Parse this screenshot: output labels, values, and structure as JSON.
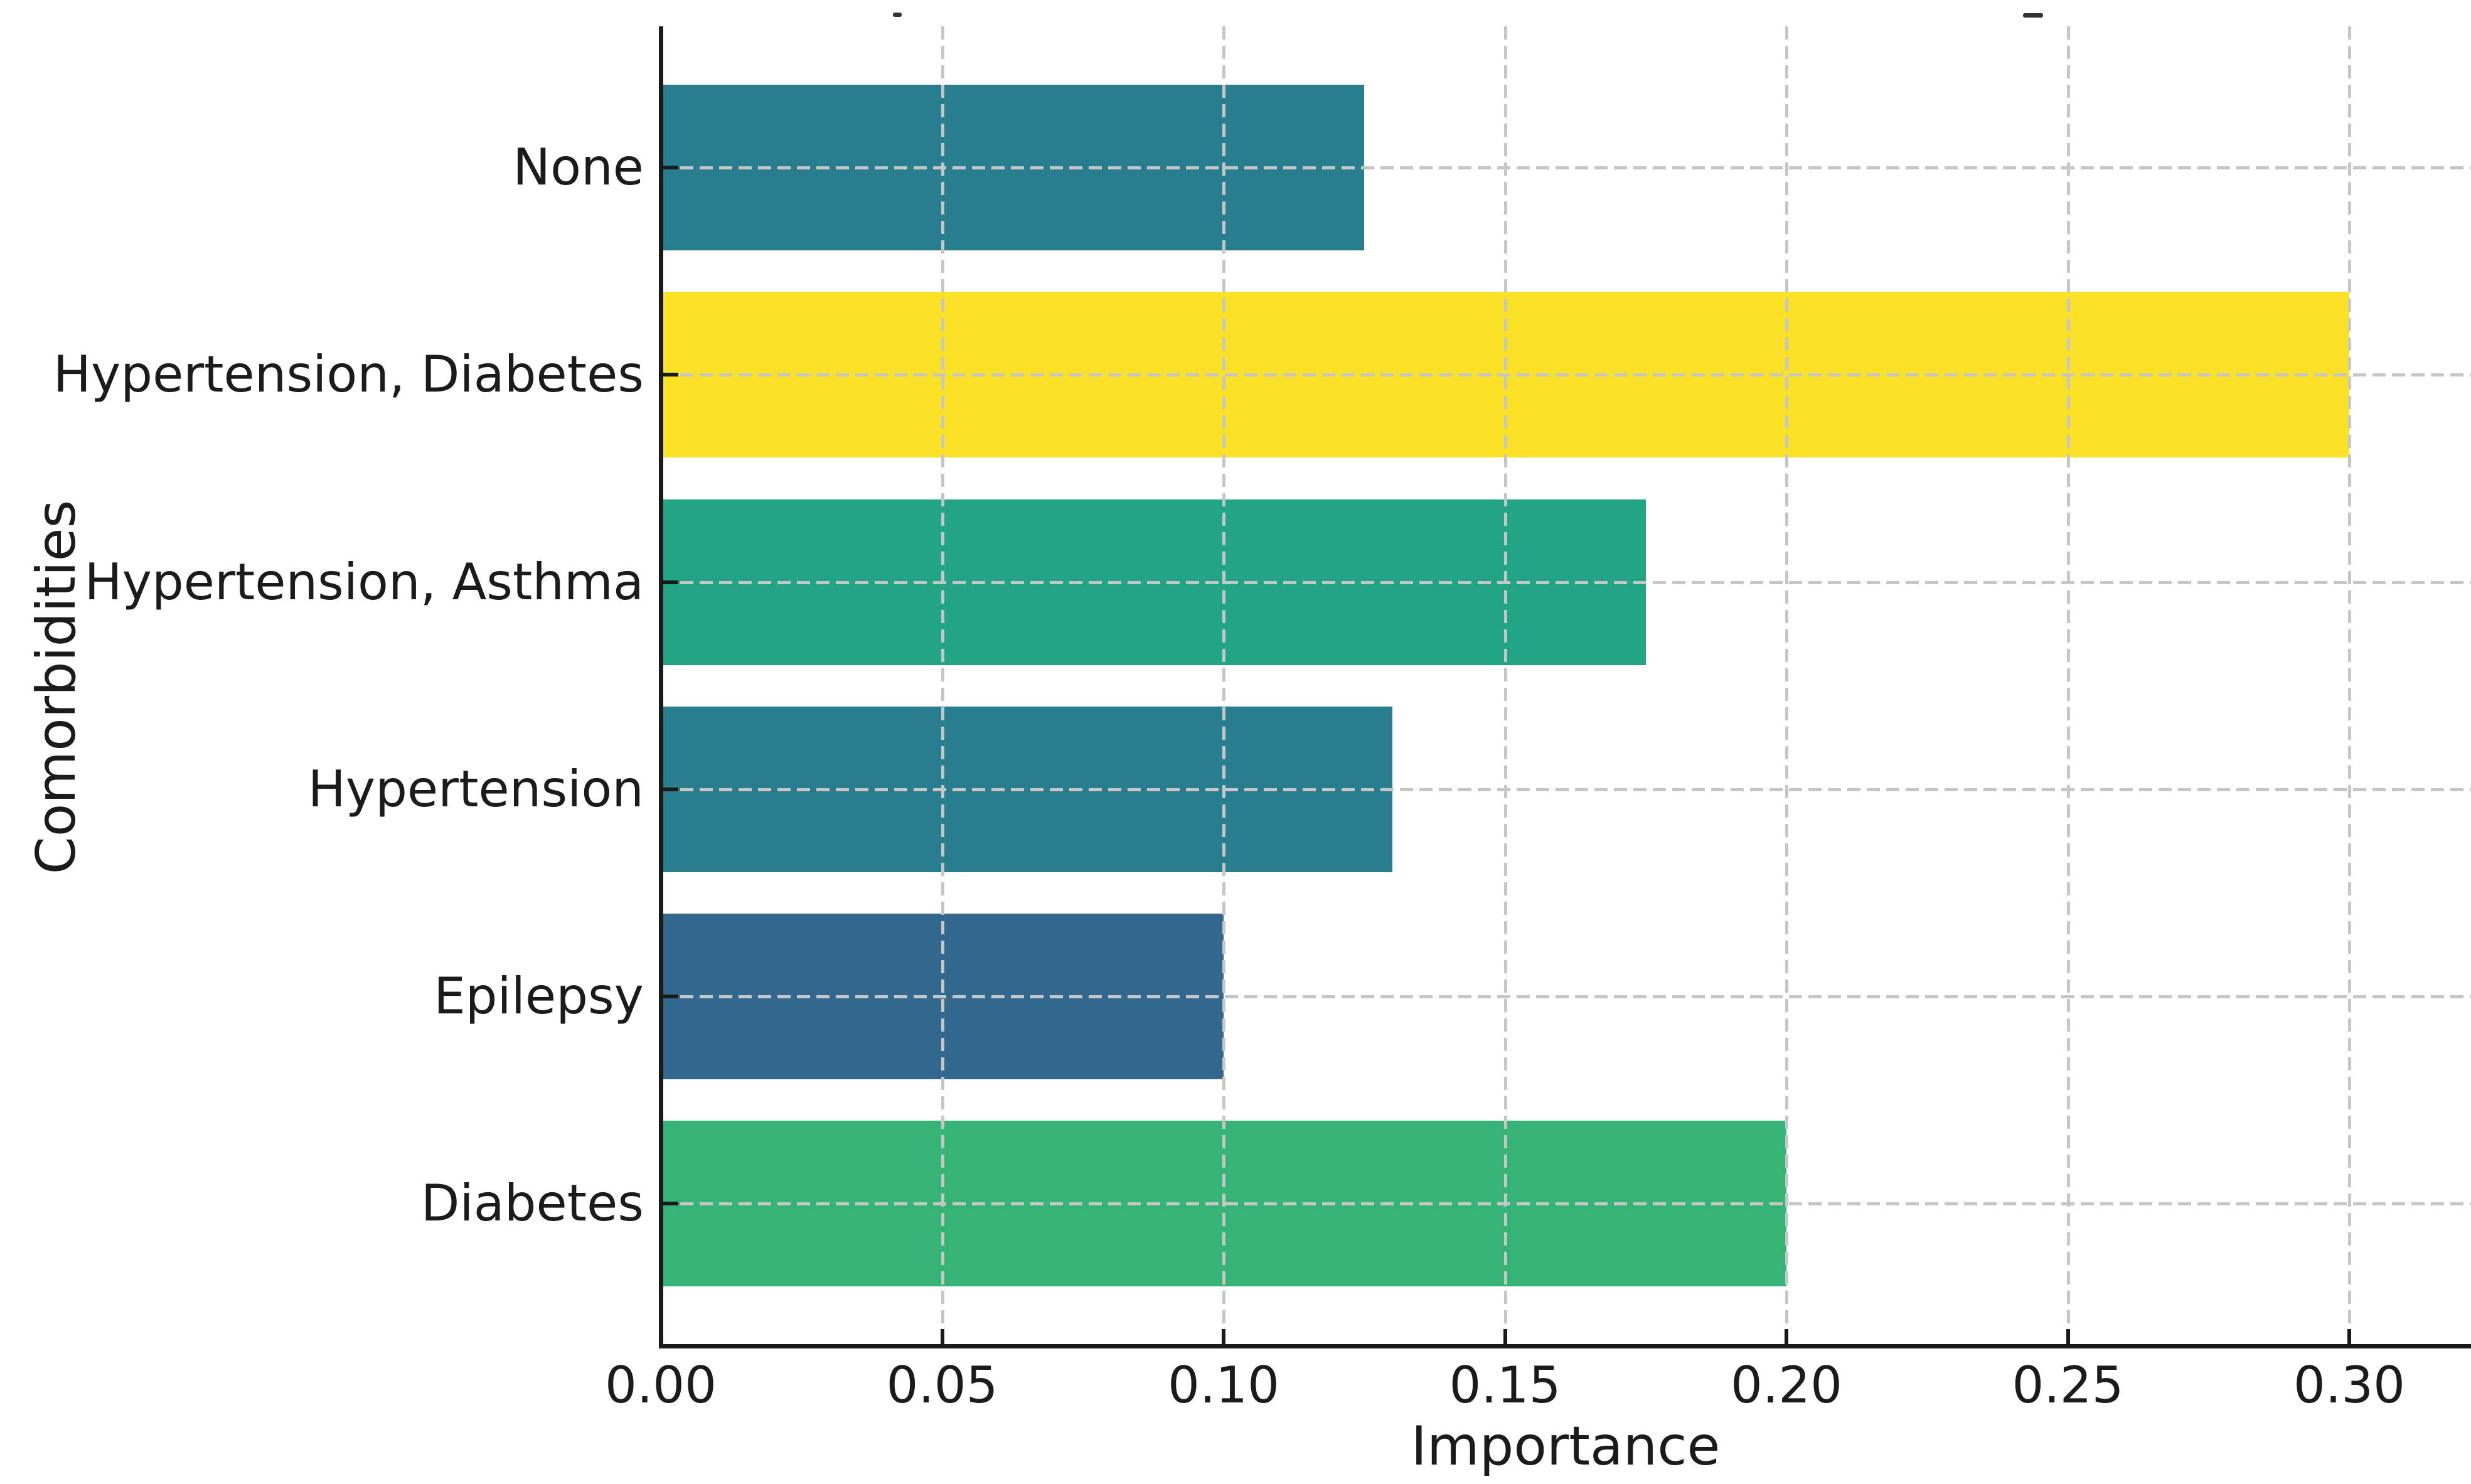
{
  "chart_data": {
    "type": "bar",
    "orientation": "horizontal",
    "title": "",
    "title_note": "title cropped out of frame; only two descender fragments visible at top edge",
    "xlabel": "Importance",
    "ylabel": "Comorbidities",
    "categories": [
      "None",
      "Hypertension, Diabetes",
      "Hypertension, Asthma",
      "Hypertension",
      "Epilepsy",
      "Diabetes"
    ],
    "values": [
      0.125,
      0.3,
      0.175,
      0.13,
      0.1,
      0.2
    ],
    "bar_colors": [
      "#287d8e",
      "#fbe226",
      "#21a585",
      "#287d8e",
      "#32688e",
      "#36b477"
    ],
    "x_tick_labels": [
      "0.00",
      "0.05",
      "0.10",
      "0.15",
      "0.20",
      "0.25",
      "0.30"
    ],
    "x_tick_values": [
      0.0,
      0.05,
      0.1,
      0.15,
      0.2,
      0.25,
      0.3
    ],
    "xlim": [
      0.0,
      0.3217
    ],
    "bar_height_frac": 0.8,
    "grid": {
      "visible": true,
      "style": "dashed",
      "color": "#c5c7c7",
      "axes": "both"
    },
    "legend": {
      "visible": false
    },
    "background_color": "#ffffff",
    "spine_color": "#1a1a1a",
    "text_color": "#1b1b1b"
  }
}
